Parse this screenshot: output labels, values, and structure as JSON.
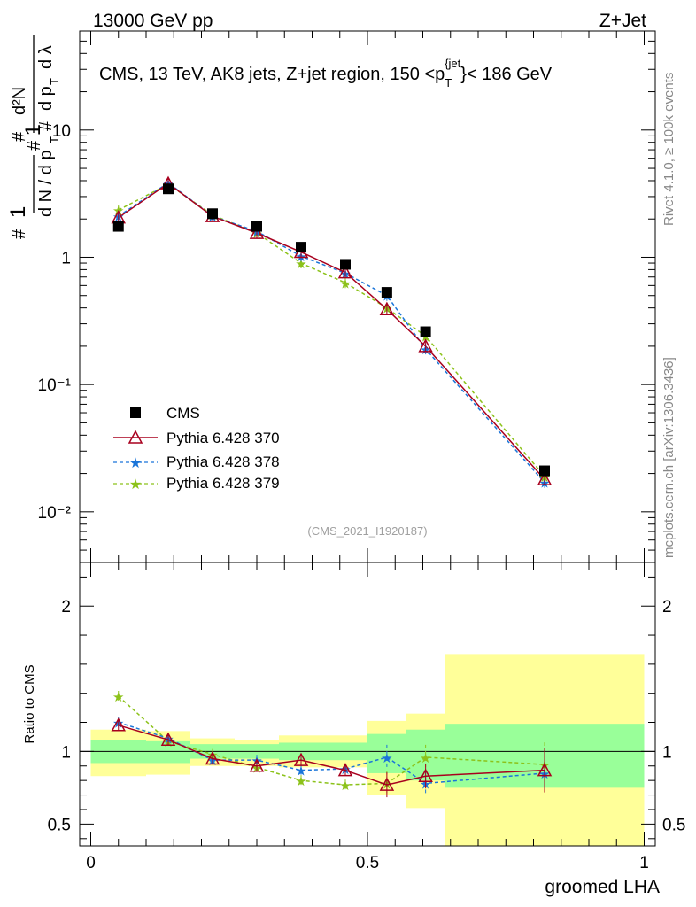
{
  "header": {
    "energy": "13000 GeV pp",
    "process": "Z+Jet"
  },
  "side": {
    "rivet": "Rivet 4.1.0, ≥ 100k events",
    "mcplots": "mcplots.cern.ch [arXiv:1306.3436]"
  },
  "chart_data": [
    {
      "type": "scatter",
      "title": "CMS, 13 TeV, AK8 jets, Z+jet region, 150 <p_T^{jet}< 186 GeV",
      "ylabel": "1/(dN/dp_T) d²N/(dp_T dλ)",
      "yscale": "log",
      "ylim": [
        0.004,
        60
      ],
      "xlim": [
        -0.02,
        1.02
      ],
      "watermark": "(CMS_2021_I1920187)",
      "ytick_labels": [
        "10⁻²",
        "10⁻¹",
        "1",
        "10"
      ],
      "x": [
        0.05,
        0.14,
        0.22,
        0.3,
        0.38,
        0.46,
        0.535,
        0.605,
        0.82
      ],
      "series": [
        {
          "name": "CMS",
          "values": [
            1.75,
            3.45,
            2.2,
            1.75,
            1.2,
            0.88,
            0.53,
            0.26,
            0.021
          ]
        },
        {
          "name": "Pythia 6.428 370",
          "values": [
            2.05,
            3.8,
            2.1,
            1.55,
            1.1,
            0.76,
            0.39,
            0.2,
            0.018
          ]
        },
        {
          "name": "Pythia 6.428 378",
          "values": [
            2.1,
            3.85,
            2.1,
            1.6,
            1.02,
            0.75,
            0.5,
            0.19,
            0.017
          ]
        },
        {
          "name": "Pythia 6.428 379",
          "values": [
            2.35,
            3.75,
            2.15,
            1.55,
            0.9,
            0.63,
            0.4,
            0.24,
            0.019
          ]
        }
      ]
    },
    {
      "type": "scatter",
      "ylabel": "Ratio to CMS",
      "xlabel": "groomed LHA",
      "ylim": [
        0.35,
        2.3
      ],
      "xlim": [
        -0.02,
        1.02
      ],
      "xtick_labels": [
        "0",
        "0.5",
        "1"
      ],
      "ytick_labels": [
        "0.5",
        "1",
        "2"
      ],
      "bin_edges": [
        0.0,
        0.1,
        0.18,
        0.26,
        0.34,
        0.42,
        0.5,
        0.57,
        0.64,
        1.0
      ],
      "band_inner": [
        [
          0.92,
          1.08
        ],
        [
          0.92,
          1.07
        ],
        [
          0.95,
          1.05
        ],
        [
          0.95,
          1.05
        ],
        [
          0.94,
          1.06
        ],
        [
          0.94,
          1.06
        ],
        [
          0.85,
          1.12
        ],
        [
          0.8,
          1.15
        ],
        [
          0.75,
          1.19
        ]
      ],
      "band_outer": [
        [
          0.83,
          1.15
        ],
        [
          0.84,
          1.14
        ],
        [
          0.9,
          1.09
        ],
        [
          0.9,
          1.08
        ],
        [
          0.89,
          1.11
        ],
        [
          0.89,
          1.11
        ],
        [
          0.7,
          1.21
        ],
        [
          0.61,
          1.26
        ],
        [
          0.35,
          1.67
        ]
      ],
      "x": [
        0.05,
        0.14,
        0.22,
        0.3,
        0.38,
        0.46,
        0.535,
        0.605,
        0.82
      ],
      "series": [
        {
          "name": "Pythia 6.428 370",
          "values": [
            1.18,
            1.08,
            0.95,
            0.9,
            0.94,
            0.87,
            0.77,
            0.83,
            0.87
          ]
        },
        {
          "name": "Pythia 6.428 378",
          "values": [
            1.2,
            1.09,
            0.94,
            0.94,
            0.87,
            0.88,
            0.96,
            0.78,
            0.85
          ]
        },
        {
          "name": "Pythia 6.428 379",
          "values": [
            1.38,
            1.07,
            0.98,
            0.89,
            0.8,
            0.77,
            0.78,
            0.96,
            0.91
          ]
        }
      ]
    }
  ],
  "colors": {
    "cms": "#000000",
    "p370": "#a8001e",
    "p378": "#1a75d9",
    "p379": "#8cc21a",
    "yellow": "#ffff99",
    "green": "#99ff99"
  }
}
